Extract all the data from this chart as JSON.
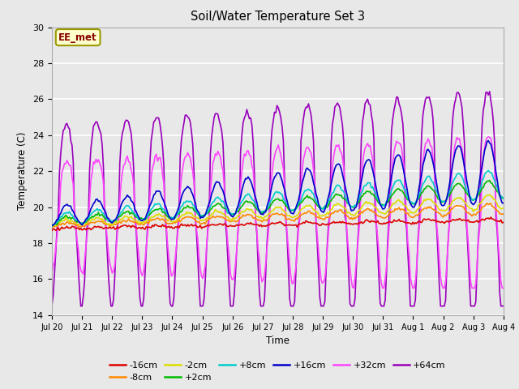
{
  "title": "Soil/Water Temperature Set 3",
  "xlabel": "Time",
  "ylabel": "Temperature (C)",
  "ylim": [
    14,
    30
  ],
  "xlim": [
    0,
    15
  ],
  "bg_color": "#e8e8e8",
  "annotation_text": "EE_met",
  "annotation_bg": "#ffffcc",
  "annotation_border": "#999900",
  "annotation_text_color": "#880000",
  "xtick_labels": [
    "Jul 20",
    "Jul 21",
    "Jul 22",
    "Jul 23",
    "Jul 24",
    "Jul 25",
    "Jul 26",
    "Jul 27",
    "Jul 28",
    "Jul 29",
    "Jul 30",
    "Jul 31",
    "Aug 1",
    "Aug 2",
    "Aug 3",
    "Aug 4"
  ],
  "series_colors": {
    "-16cm": "#dd0000",
    "-8cm": "#ff8800",
    "-2cm": "#dddd00",
    "+2cm": "#00bb00",
    "+8cm": "#00cccc",
    "+16cm": "#0000cc",
    "+32cm": "#ff44ff",
    "+64cm": "#9900bb"
  },
  "legend_order": [
    "-16cm",
    "-8cm",
    "-2cm",
    "+2cm",
    "+8cm",
    "+16cm",
    "+32cm",
    "+64cm"
  ]
}
